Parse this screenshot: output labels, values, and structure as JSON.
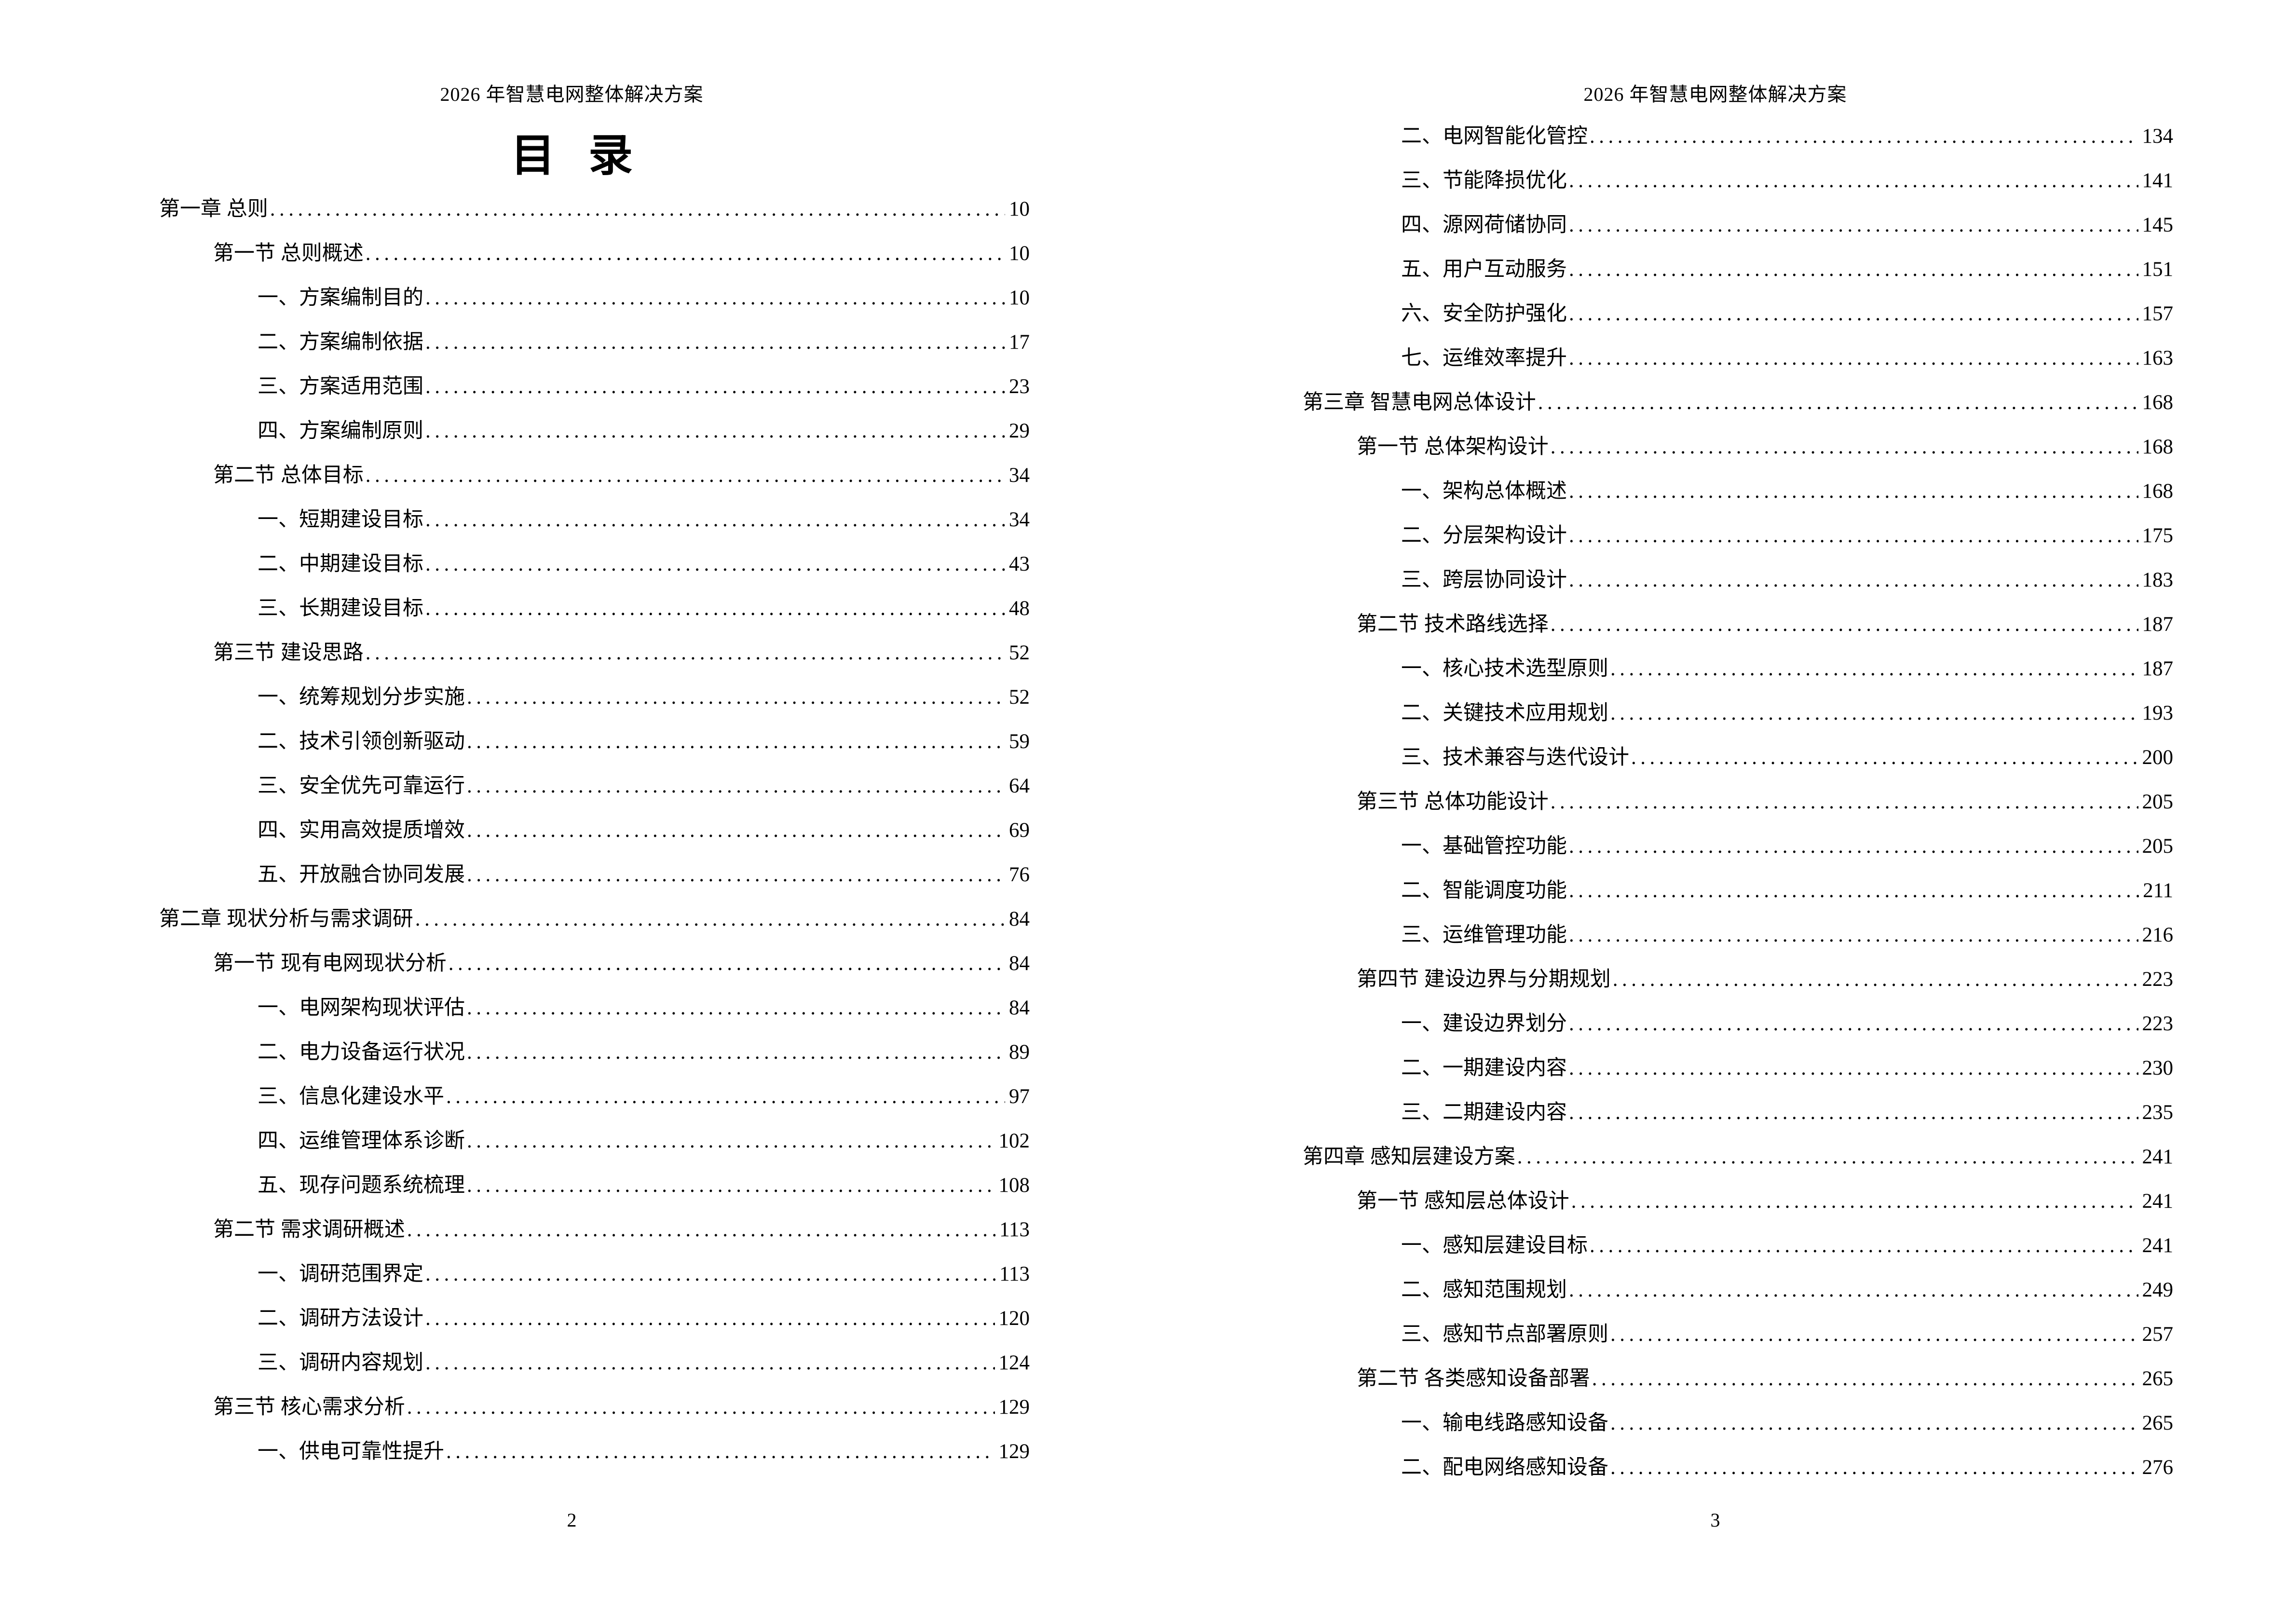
{
  "colors": {
    "text": "#000000",
    "background": "#ffffff"
  },
  "document": {
    "header": "2026 年智慧电网整体解决方案",
    "toc_title": "目 录",
    "pages": [
      {
        "number": "2",
        "entries": [
          {
            "level": 1,
            "label": "第一章 总则",
            "page": "10"
          },
          {
            "level": 2,
            "label": "第一节 总则概述",
            "page": "10"
          },
          {
            "level": 3,
            "label": "一、方案编制目的",
            "page": "10"
          },
          {
            "level": 3,
            "label": "二、方案编制依据",
            "page": "17"
          },
          {
            "level": 3,
            "label": "三、方案适用范围",
            "page": "23"
          },
          {
            "level": 3,
            "label": "四、方案编制原则",
            "page": "29"
          },
          {
            "level": 2,
            "label": "第二节 总体目标",
            "page": "34"
          },
          {
            "level": 3,
            "label": "一、短期建设目标",
            "page": "34"
          },
          {
            "level": 3,
            "label": "二、中期建设目标",
            "page": "43"
          },
          {
            "level": 3,
            "label": "三、长期建设目标",
            "page": "48"
          },
          {
            "level": 2,
            "label": "第三节 建设思路",
            "page": "52"
          },
          {
            "level": 3,
            "label": "一、统筹规划分步实施",
            "page": "52"
          },
          {
            "level": 3,
            "label": "二、技术引领创新驱动",
            "page": "59"
          },
          {
            "level": 3,
            "label": "三、安全优先可靠运行",
            "page": "64"
          },
          {
            "level": 3,
            "label": "四、实用高效提质增效",
            "page": "69"
          },
          {
            "level": 3,
            "label": "五、开放融合协同发展",
            "page": "76"
          },
          {
            "level": 1,
            "label": "第二章 现状分析与需求调研",
            "page": "84"
          },
          {
            "level": 2,
            "label": "第一节 现有电网现状分析",
            "page": "84"
          },
          {
            "level": 3,
            "label": "一、电网架构现状评估",
            "page": "84"
          },
          {
            "level": 3,
            "label": "二、电力设备运行状况",
            "page": "89"
          },
          {
            "level": 3,
            "label": "三、信息化建设水平",
            "page": "97"
          },
          {
            "level": 3,
            "label": "四、运维管理体系诊断",
            "page": "102"
          },
          {
            "level": 3,
            "label": "五、现存问题系统梳理",
            "page": "108"
          },
          {
            "level": 2,
            "label": "第二节 需求调研概述",
            "page": "113"
          },
          {
            "level": 3,
            "label": "一、调研范围界定",
            "page": "113"
          },
          {
            "level": 3,
            "label": "二、调研方法设计",
            "page": "120"
          },
          {
            "level": 3,
            "label": "三、调研内容规划",
            "page": "124"
          },
          {
            "level": 2,
            "label": "第三节 核心需求分析",
            "page": "129"
          },
          {
            "level": 3,
            "label": "一、供电可靠性提升",
            "page": "129"
          }
        ]
      },
      {
        "number": "3",
        "entries": [
          {
            "level": 3,
            "label": "二、电网智能化管控",
            "page": "134"
          },
          {
            "level": 3,
            "label": "三、节能降损优化",
            "page": "141"
          },
          {
            "level": 3,
            "label": "四、源网荷储协同",
            "page": "145"
          },
          {
            "level": 3,
            "label": "五、用户互动服务",
            "page": "151"
          },
          {
            "level": 3,
            "label": "六、安全防护强化",
            "page": "157"
          },
          {
            "level": 3,
            "label": "七、运维效率提升",
            "page": "163"
          },
          {
            "level": 1,
            "label": "第三章 智慧电网总体设计",
            "page": "168"
          },
          {
            "level": 2,
            "label": "第一节 总体架构设计",
            "page": "168"
          },
          {
            "level": 3,
            "label": "一、架构总体概述",
            "page": "168"
          },
          {
            "level": 3,
            "label": "二、分层架构设计",
            "page": "175"
          },
          {
            "level": 3,
            "label": "三、跨层协同设计",
            "page": "183"
          },
          {
            "level": 2,
            "label": "第二节 技术路线选择",
            "page": "187"
          },
          {
            "level": 3,
            "label": "一、核心技术选型原则",
            "page": "187"
          },
          {
            "level": 3,
            "label": "二、关键技术应用规划",
            "page": "193"
          },
          {
            "level": 3,
            "label": "三、技术兼容与迭代设计",
            "page": "200"
          },
          {
            "level": 2,
            "label": "第三节 总体功能设计",
            "page": "205"
          },
          {
            "level": 3,
            "label": "一、基础管控功能",
            "page": "205"
          },
          {
            "level": 3,
            "label": "二、智能调度功能",
            "page": "211"
          },
          {
            "level": 3,
            "label": "三、运维管理功能",
            "page": "216"
          },
          {
            "level": 2,
            "label": "第四节 建设边界与分期规划",
            "page": "223"
          },
          {
            "level": 3,
            "label": "一、建设边界划分",
            "page": "223"
          },
          {
            "level": 3,
            "label": "二、一期建设内容",
            "page": "230"
          },
          {
            "level": 3,
            "label": "三、二期建设内容",
            "page": "235"
          },
          {
            "level": 1,
            "label": "第四章 感知层建设方案",
            "page": "241"
          },
          {
            "level": 2,
            "label": "第一节 感知层总体设计",
            "page": "241"
          },
          {
            "level": 3,
            "label": "一、感知层建设目标",
            "page": "241"
          },
          {
            "level": 3,
            "label": "二、感知范围规划",
            "page": "249"
          },
          {
            "level": 3,
            "label": "三、感知节点部署原则",
            "page": "257"
          },
          {
            "level": 2,
            "label": "第二节 各类感知设备部署",
            "page": "265"
          },
          {
            "level": 3,
            "label": "一、输电线路感知设备",
            "page": "265"
          },
          {
            "level": 3,
            "label": "二、配电网络感知设备",
            "page": "276"
          }
        ]
      }
    ]
  }
}
